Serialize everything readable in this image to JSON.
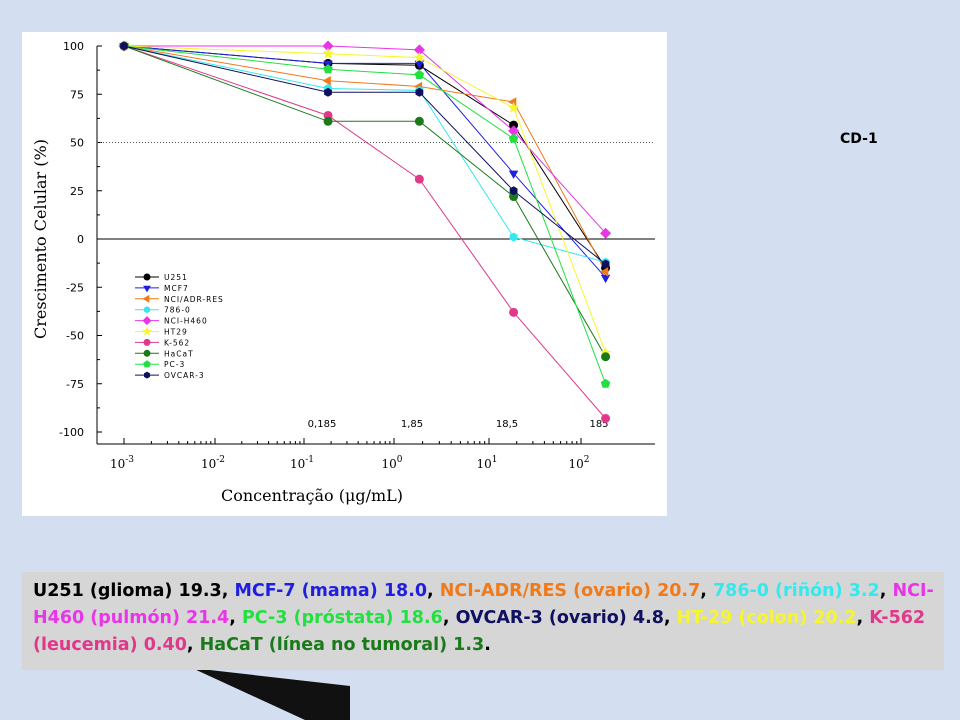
{
  "side_label": "CD-1",
  "caption": [
    {
      "text": "U251 (glioma) 19.3",
      "color": "#000000"
    },
    {
      "text": ", ",
      "color": "#000000"
    },
    {
      "text": "MCF-7 (mama) 18.0",
      "color": "#1f1fe0"
    },
    {
      "text": ", ",
      "color": "#000000"
    },
    {
      "text": "NCI-ADR/RES (ovario) 20.7",
      "color": "#f07a1a"
    },
    {
      "text": ", ",
      "color": "#000000"
    },
    {
      "text": "786-0 (riñón) 3.2",
      "color": "#35e8ee"
    },
    {
      "text": ", ",
      "color": "#000000"
    },
    {
      "text": "NCI-H460 (pulmón) 21.4",
      "color": "#e835e8"
    },
    {
      "text": ", ",
      "color": "#000000"
    },
    {
      "text": "PC-3 (próstata) 18.6",
      "color": "#22e040"
    },
    {
      "text": ", ",
      "color": "#000000"
    },
    {
      "text": "OVCAR-3 (ovario) 4.8",
      "color": "#101060"
    },
    {
      "text": ", ",
      "color": "#000000"
    },
    {
      "text": "HT-29 (colon) 20.2",
      "color": "#f5f530"
    },
    {
      "text": ", ",
      "color": "#000000"
    },
    {
      "text": "K-562 (leucemia) 0.40",
      "color": "#e0388a"
    },
    {
      "text": ", ",
      "color": "#000000"
    },
    {
      "text": "HaCaT (línea no tumoral) 1.3",
      "color": "#1a7a1a"
    },
    {
      "text": ".",
      "color": "#000000"
    }
  ],
  "chart_data": {
    "type": "line",
    "xlabel": "Concentração (μg/mL)",
    "ylabel": "Crescimento Celular (%)",
    "x_scale": "log",
    "ylim": [
      -100,
      100
    ],
    "yticks": [
      "100",
      "75",
      "50",
      "25",
      "0",
      "-25",
      "-50",
      "-75",
      "-100"
    ],
    "xticks": [
      {
        "base": "10",
        "exp": "-3",
        "tail": ""
      },
      {
        "base": "10",
        "exp": "-2",
        "tail": ""
      },
      {
        "base": "10",
        "exp": "-1",
        "tail": "0,185"
      },
      {
        "base": "10",
        "exp": "0",
        "tail": "1,85"
      },
      {
        "base": "10",
        "exp": "1",
        "tail": "18,5"
      },
      {
        "base": "10",
        "exp": "2",
        "tail": "185"
      }
    ],
    "x": [
      0.001,
      0.185,
      1.85,
      18.5,
      185
    ],
    "reference_line_y": 50,
    "zero_line_y": 0,
    "legend_position": "bottom-left",
    "series": [
      {
        "name": "U251",
        "color": "#000000",
        "marker": "circle",
        "values": [
          100,
          91,
          90,
          59,
          -15
        ]
      },
      {
        "name": "MCF7",
        "color": "#1f1fe0",
        "marker": "triangle-down",
        "values": [
          100,
          91,
          91,
          34,
          -20
        ]
      },
      {
        "name": "NCI/ADR-RES",
        "color": "#f07a1a",
        "marker": "triangle-left",
        "values": [
          100,
          82,
          79,
          71,
          -17
        ]
      },
      {
        "name": "786-0",
        "color": "#35e8ee",
        "marker": "hexagon",
        "values": [
          100,
          78,
          77,
          1,
          -12
        ]
      },
      {
        "name": "NCI-H460",
        "color": "#e835e8",
        "marker": "diamond",
        "values": [
          100,
          100,
          98,
          56,
          3
        ]
      },
      {
        "name": "HT29",
        "color": "#f5f530",
        "marker": "star",
        "values": [
          100,
          96,
          94,
          68,
          -59
        ]
      },
      {
        "name": "K-562",
        "color": "#e0388a",
        "marker": "circle",
        "values": [
          100,
          64,
          31,
          -38,
          -93
        ]
      },
      {
        "name": "HaCaT",
        "color": "#1a7a1a",
        "marker": "circle",
        "values": [
          100,
          61,
          61,
          22,
          -61
        ]
      },
      {
        "name": "PC-3",
        "color": "#22e040",
        "marker": "pentagon",
        "values": [
          100,
          88,
          85,
          52,
          -75
        ]
      },
      {
        "name": "OVCAR-3",
        "color": "#101060",
        "marker": "hexagon",
        "values": [
          100,
          76,
          76,
          25,
          -13
        ]
      }
    ]
  }
}
